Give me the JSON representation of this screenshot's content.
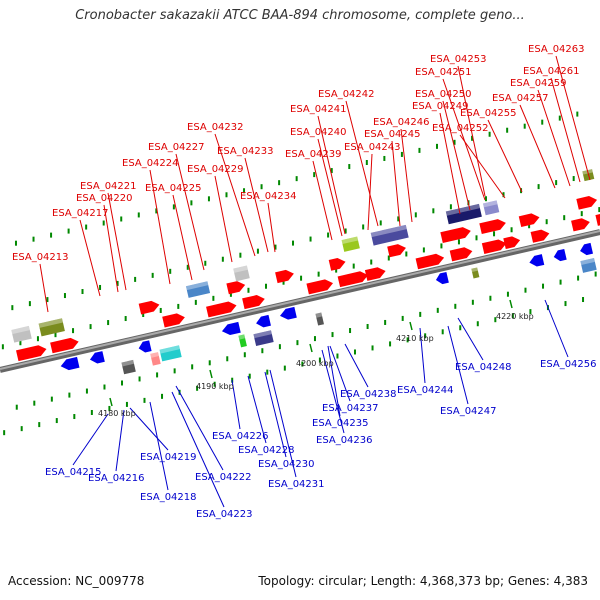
{
  "title": "Cronobacter sakazakii ATCC BAA-894 chromosome, complete geno...",
  "accession": "Accession: NC_009778",
  "summary": "Topology: circular; Length: 4,368,373 bp; Genes: 4,383",
  "colors": {
    "plus_label": "#dd0000",
    "minus_label": "#0000cc",
    "backbone": "#888888",
    "tick": "#008800"
  },
  "ticks": [
    {
      "label": "4180 kbp"
    },
    {
      "label": "4190 kbp"
    },
    {
      "label": "4200 kbp"
    },
    {
      "label": "4210 kbp"
    },
    {
      "label": "4220 kbp"
    }
  ],
  "plus_genes": [
    {
      "label": "ESA_04213"
    },
    {
      "label": "ESA_04217"
    },
    {
      "label": "ESA_04220"
    },
    {
      "label": "ESA_04221"
    },
    {
      "label": "ESA_04224"
    },
    {
      "label": "ESA_04225"
    },
    {
      "label": "ESA_04227"
    },
    {
      "label": "ESA_04229"
    },
    {
      "label": "ESA_04232"
    },
    {
      "label": "ESA_04233"
    },
    {
      "label": "ESA_04234"
    },
    {
      "label": "ESA_04239"
    },
    {
      "label": "ESA_04240"
    },
    {
      "label": "ESA_04241"
    },
    {
      "label": "ESA_04242"
    },
    {
      "label": "ESA_04243"
    },
    {
      "label": "ESA_04245"
    },
    {
      "label": "ESA_04246"
    },
    {
      "label": "ESA_04249"
    },
    {
      "label": "ESA_04250"
    },
    {
      "label": "ESA_04251"
    },
    {
      "label": "ESA_04252"
    },
    {
      "label": "ESA_04253"
    },
    {
      "label": "ESA_04255"
    },
    {
      "label": "ESA_04257"
    },
    {
      "label": "ESA_04259"
    },
    {
      "label": "ESA_04261"
    },
    {
      "label": "ESA_04263"
    }
  ],
  "minus_genes": [
    {
      "label": "ESA_04215"
    },
    {
      "label": "ESA_04216"
    },
    {
      "label": "ESA_04218"
    },
    {
      "label": "ESA_04219"
    },
    {
      "label": "ESA_04222"
    },
    {
      "label": "ESA_04223"
    },
    {
      "label": "ESA_04226"
    },
    {
      "label": "ESA_04228"
    },
    {
      "label": "ESA_04230"
    },
    {
      "label": "ESA_04231"
    },
    {
      "label": "ESA_04235"
    },
    {
      "label": "ESA_04236"
    },
    {
      "label": "ESA_04237"
    },
    {
      "label": "ESA_04238"
    },
    {
      "label": "ESA_04244"
    },
    {
      "label": "ESA_04247"
    },
    {
      "label": "ESA_04248"
    },
    {
      "label": "ESA_04256"
    }
  ]
}
